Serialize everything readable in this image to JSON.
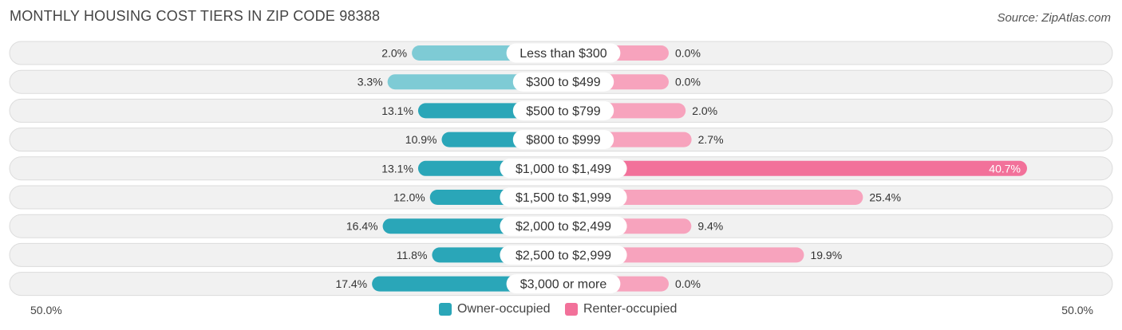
{
  "title": "MONTHLY HOUSING COST TIERS IN ZIP CODE 98388",
  "source": "Source: ZipAtlas.com",
  "colors": {
    "owner_strong": "#2aa6b8",
    "owner_light": "#7ecbd5",
    "renter_strong": "#f2719a",
    "renter_light": "#f7a3bd",
    "row_bg": "#f1f1f1",
    "row_border": "#dcdcdc"
  },
  "axis": {
    "left_label": "50.0%",
    "right_label": "50.0%"
  },
  "legend": [
    {
      "label": "Owner-occupied",
      "color": "#2aa6b8"
    },
    {
      "label": "Renter-occupied",
      "color": "#f2719a"
    }
  ],
  "chart_data": {
    "type": "bar",
    "orientation": "horizontal-diverging",
    "xlim": [
      -50,
      50
    ],
    "categories": [
      "Less than $300",
      "$300 to $499",
      "$500 to $799",
      "$800 to $999",
      "$1,000 to $1,499",
      "$1,500 to $1,999",
      "$2,000 to $2,499",
      "$2,500 to $2,999",
      "$3,000 or more"
    ],
    "series": [
      {
        "name": "Owner-occupied",
        "values": [
          2.0,
          3.3,
          13.1,
          10.9,
          13.1,
          12.0,
          16.4,
          11.8,
          17.4
        ],
        "labels": [
          "2.0%",
          "3.3%",
          "13.1%",
          "10.9%",
          "13.1%",
          "12.0%",
          "16.4%",
          "11.8%",
          "17.4%"
        ]
      },
      {
        "name": "Renter-occupied",
        "values": [
          0.0,
          0.0,
          2.0,
          2.7,
          40.7,
          25.4,
          9.4,
          19.9,
          0.0
        ],
        "labels": [
          "0.0%",
          "0.0%",
          "2.0%",
          "2.7%",
          "40.7%",
          "25.4%",
          "9.4%",
          "19.9%",
          "0.0%"
        ]
      }
    ]
  }
}
